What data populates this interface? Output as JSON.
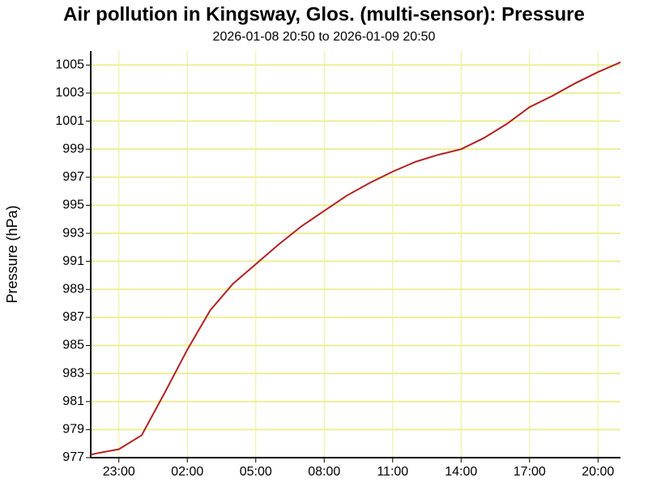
{
  "chart_data": {
    "type": "line",
    "title": "Air pollution in Kingsway, Glos. (multi-sensor): Pressure",
    "subtitle": "2026-01-08 20:50 to 2026-01-09 20:50",
    "y_label": "Pressure (hPa)",
    "x": [
      "2026-01-08 21:46",
      "2026-01-08 22:00",
      "2026-01-08 23:00",
      "2026-01-09 00:00",
      "2026-01-09 01:00",
      "2026-01-09 02:00",
      "2026-01-09 03:00",
      "2026-01-09 04:00",
      "2026-01-09 05:00",
      "2026-01-09 06:00",
      "2026-01-09 07:00",
      "2026-01-09 08:00",
      "2026-01-09 09:00",
      "2026-01-09 10:00",
      "2026-01-09 11:00",
      "2026-01-09 12:00",
      "2026-01-09 13:00",
      "2026-01-09 14:00",
      "2026-01-09 15:00",
      "2026-01-09 16:00",
      "2026-01-09 17:00",
      "2026-01-09 18:00",
      "2026-01-09 19:00",
      "2026-01-09 20:00",
      "2026-01-09 20:59"
    ],
    "series": [
      {
        "name": "Pressure",
        "color": "#b22222",
        "values": [
          977.2,
          977.3,
          977.6,
          978.6,
          981.6,
          984.7,
          987.5,
          989.4,
          990.8,
          992.2,
          993.5,
          994.6,
          995.7,
          996.6,
          997.4,
          998.1,
          998.6,
          999.0,
          999.8,
          1000.8,
          1002.0,
          1002.8,
          1003.7,
          1004.5,
          1005.2
        ]
      }
    ],
    "xlim": [
      "2026-01-08 21:46",
      "2026-01-09 20:59"
    ],
    "xticks": [
      {
        "value": "2026-01-08 23:00",
        "label": "23:00"
      },
      {
        "value": "2026-01-09 02:00",
        "label": "02:00"
      },
      {
        "value": "2026-01-09 05:00",
        "label": "05:00"
      },
      {
        "value": "2026-01-09 08:00",
        "label": "08:00"
      },
      {
        "value": "2026-01-09 11:00",
        "label": "11:00"
      },
      {
        "value": "2026-01-09 14:00",
        "label": "14:00"
      },
      {
        "value": "2026-01-09 17:00",
        "label": "17:00"
      },
      {
        "value": "2026-01-09 20:00",
        "label": "20:00"
      }
    ],
    "ylim": [
      977,
      1006
    ],
    "yticks": [
      977,
      979,
      981,
      983,
      985,
      987,
      989,
      991,
      993,
      995,
      997,
      999,
      1001,
      1003,
      1005
    ],
    "grid": true,
    "grid_color": "#eeee99"
  }
}
